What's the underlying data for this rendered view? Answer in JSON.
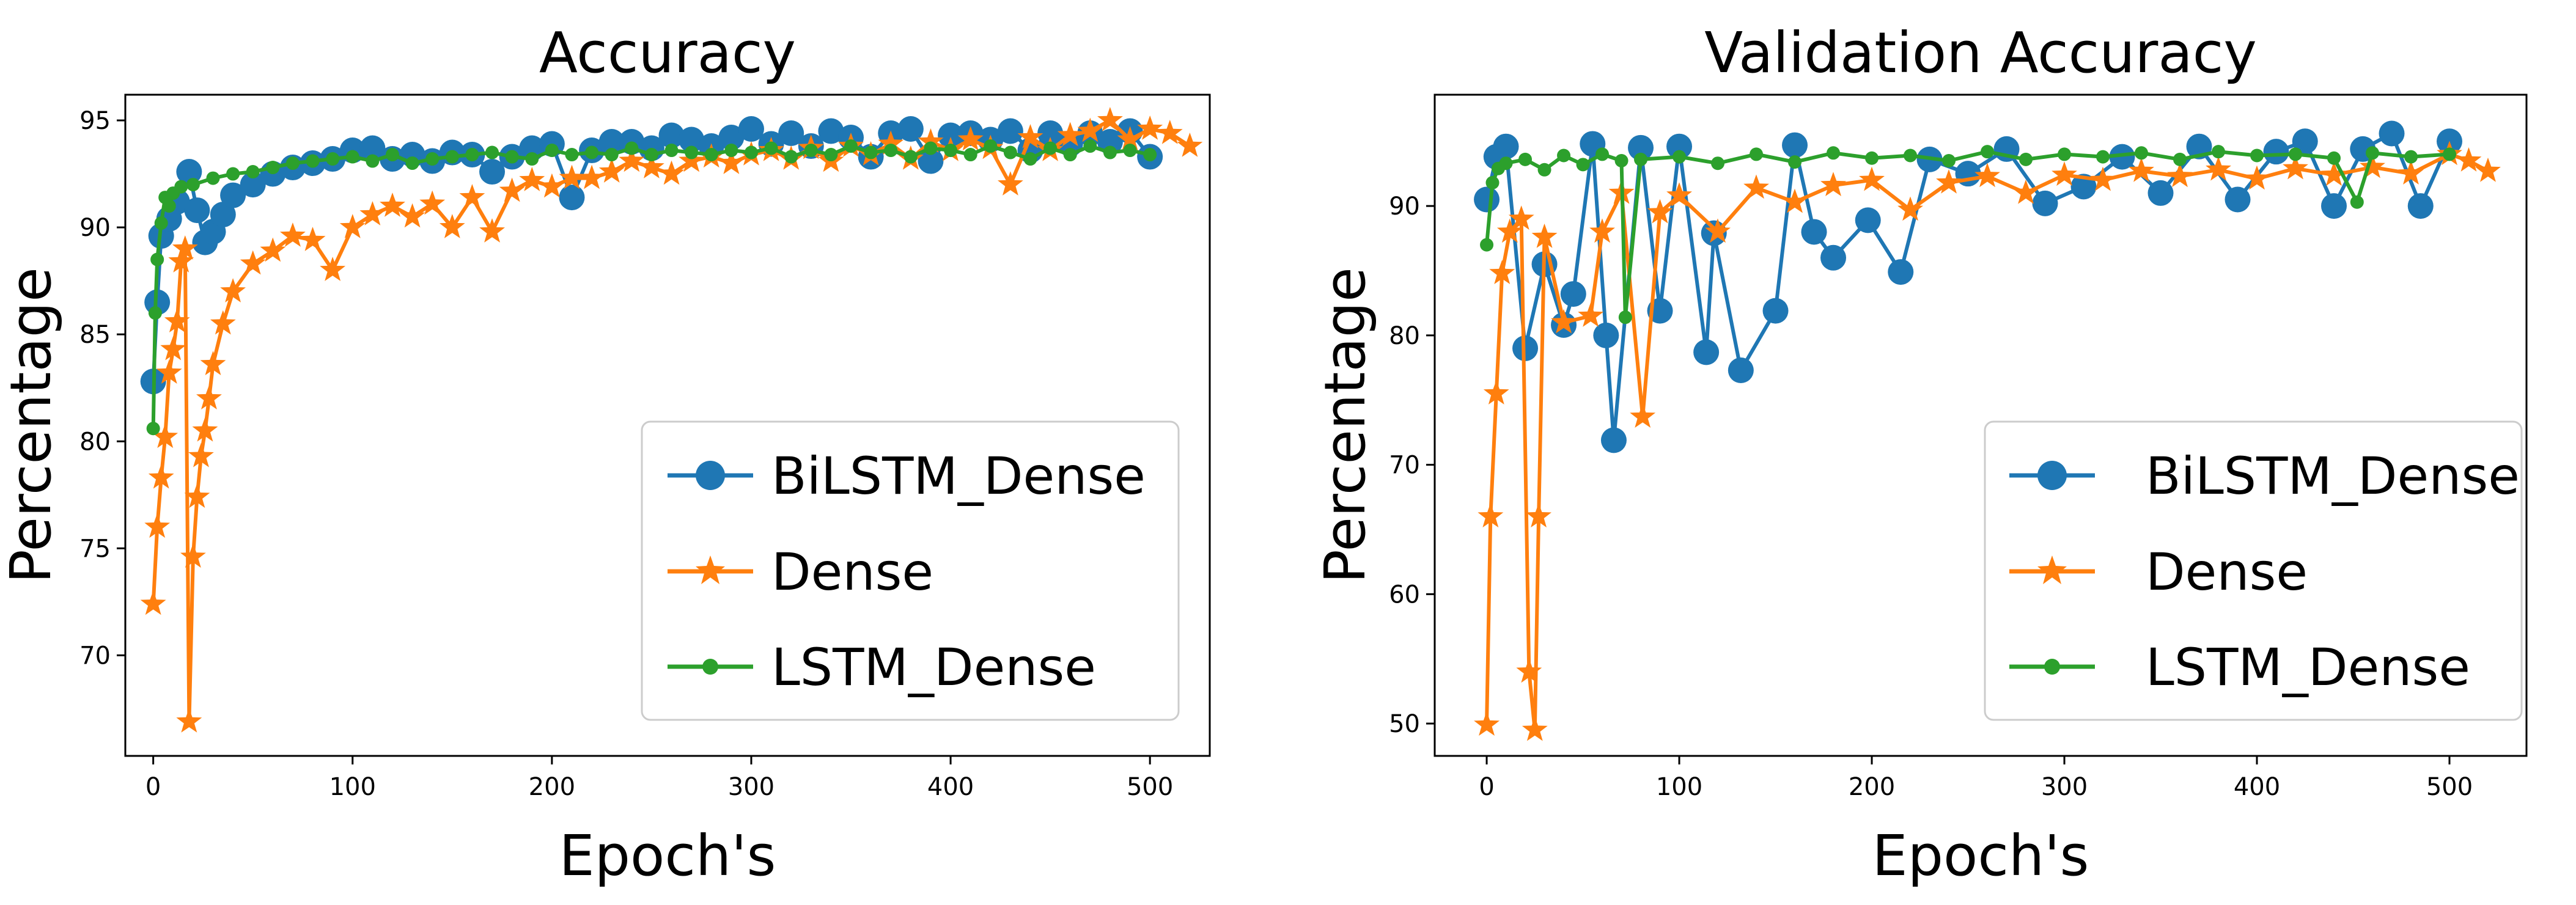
{
  "chart_data": [
    {
      "type": "line",
      "title": "Accuracy",
      "xlabel": "Epoch's",
      "ylabel": "Percentage",
      "xlim": [
        -14,
        530
      ],
      "ylim": [
        65.3,
        96.2
      ],
      "xticks": [
        0,
        100,
        200,
        300,
        400,
        500
      ],
      "yticks": [
        70,
        75,
        80,
        85,
        90,
        95
      ],
      "legend_position": "lower-right",
      "series": [
        {
          "name": "BiLSTM_Dense",
          "color": "#1f77b4",
          "marker": "circle",
          "x": [
            0,
            2,
            4,
            8,
            12,
            18,
            22,
            26,
            30,
            35,
            40,
            50,
            60,
            70,
            80,
            90,
            100,
            110,
            120,
            130,
            140,
            150,
            160,
            170,
            180,
            190,
            200,
            210,
            220,
            230,
            240,
            250,
            260,
            270,
            280,
            290,
            300,
            310,
            320,
            330,
            340,
            350,
            360,
            370,
            380,
            390,
            400,
            410,
            420,
            430,
            440,
            450,
            460,
            470,
            480,
            490,
            500
          ],
          "y": [
            82.8,
            86.5,
            89.6,
            90.4,
            91.2,
            92.6,
            90.8,
            89.3,
            89.8,
            90.6,
            91.5,
            92.0,
            92.5,
            92.8,
            93.0,
            93.2,
            93.6,
            93.7,
            93.2,
            93.4,
            93.1,
            93.5,
            93.4,
            92.6,
            93.3,
            93.7,
            93.9,
            91.4,
            93.6,
            94.0,
            94.0,
            93.7,
            94.3,
            94.1,
            93.8,
            94.2,
            94.6,
            93.9,
            94.4,
            93.8,
            94.5,
            94.2,
            93.3,
            94.4,
            94.6,
            93.1,
            94.3,
            94.4,
            94.1,
            94.5,
            93.6,
            94.4,
            93.9,
            94.4,
            94.0,
            94.5,
            93.3
          ]
        },
        {
          "name": "Dense",
          "color": "#ff7f0e",
          "marker": "star",
          "x": [
            0,
            2,
            4,
            6,
            8,
            10,
            12,
            14,
            16,
            18,
            20,
            22,
            24,
            26,
            28,
            30,
            35,
            40,
            50,
            60,
            70,
            80,
            90,
            100,
            110,
            120,
            130,
            140,
            150,
            160,
            170,
            180,
            190,
            200,
            210,
            220,
            230,
            240,
            250,
            260,
            270,
            280,
            290,
            300,
            310,
            320,
            330,
            340,
            350,
            360,
            370,
            380,
            390,
            400,
            410,
            420,
            430,
            440,
            450,
            460,
            470,
            480,
            490,
            500,
            510,
            520
          ],
          "y": [
            72.4,
            76.0,
            78.3,
            80.2,
            83.2,
            84.3,
            85.6,
            88.4,
            89.0,
            66.9,
            74.6,
            77.4,
            79.3,
            80.5,
            82.0,
            83.6,
            85.5,
            87.0,
            88.3,
            88.9,
            89.6,
            89.4,
            88.0,
            90.0,
            90.6,
            91.0,
            90.5,
            91.1,
            90.0,
            91.4,
            89.8,
            91.7,
            92.2,
            91.9,
            92.3,
            92.3,
            92.6,
            93.1,
            92.8,
            92.5,
            93.1,
            93.3,
            93.0,
            93.4,
            93.6,
            93.2,
            93.7,
            93.1,
            93.8,
            93.4,
            93.9,
            93.2,
            94.0,
            93.6,
            94.1,
            93.7,
            92.0,
            94.2,
            93.6,
            94.3,
            94.5,
            95.0,
            94.1,
            94.6,
            94.4,
            93.8
          ]
        },
        {
          "name": "LSTM_Dense",
          "color": "#2ca02c",
          "marker": "dot",
          "x": [
            0,
            1,
            2,
            4,
            6,
            8,
            10,
            14,
            20,
            30,
            40,
            50,
            60,
            70,
            80,
            90,
            100,
            110,
            120,
            130,
            140,
            150,
            160,
            170,
            180,
            190,
            200,
            210,
            220,
            230,
            240,
            250,
            260,
            270,
            280,
            290,
            300,
            310,
            320,
            330,
            340,
            350,
            360,
            370,
            380,
            390,
            400,
            410,
            420,
            430,
            440,
            450,
            460,
            470,
            480,
            490,
            500
          ],
          "y": [
            80.6,
            86.0,
            88.5,
            90.2,
            91.4,
            91.0,
            91.6,
            91.9,
            92.0,
            92.3,
            92.5,
            92.6,
            92.8,
            93.0,
            93.1,
            93.2,
            93.3,
            93.1,
            93.4,
            93.0,
            93.2,
            93.3,
            93.4,
            93.5,
            93.3,
            93.2,
            93.6,
            93.4,
            93.5,
            93.4,
            93.7,
            93.4,
            93.6,
            93.5,
            93.4,
            93.6,
            93.5,
            93.7,
            93.3,
            93.6,
            93.4,
            93.8,
            93.5,
            93.6,
            93.3,
            93.7,
            93.6,
            93.4,
            93.8,
            93.5,
            93.2,
            93.7,
            93.4,
            93.8,
            93.5,
            93.6,
            93.4
          ]
        }
      ]
    },
    {
      "type": "line",
      "title": "Validation Accuracy",
      "xlabel": "Epoch's",
      "ylabel": "Percentage",
      "xlim": [
        -27,
        540
      ],
      "ylim": [
        47.5,
        98.6
      ],
      "xticks": [
        0,
        100,
        200,
        300,
        400,
        500
      ],
      "yticks": [
        50,
        60,
        70,
        80,
        90
      ],
      "legend_position": "lower-right",
      "series": [
        {
          "name": "BiLSTM_Dense",
          "color": "#1f77b4",
          "marker": "circle",
          "x": [
            0,
            5,
            10,
            20,
            30,
            40,
            45,
            55,
            62,
            66,
            80,
            90,
            100,
            114,
            118,
            132,
            150,
            160,
            170,
            180,
            198,
            215,
            230,
            250,
            270,
            290,
            310,
            330,
            350,
            370,
            390,
            410,
            425,
            440,
            455,
            470,
            485,
            500
          ],
          "y": [
            90.5,
            93.8,
            94.6,
            79.0,
            85.5,
            80.8,
            83.2,
            94.8,
            80.0,
            71.9,
            94.5,
            81.9,
            94.6,
            78.7,
            87.9,
            77.3,
            81.9,
            94.7,
            88.0,
            86.0,
            88.9,
            84.9,
            93.6,
            92.5,
            94.4,
            90.2,
            91.5,
            93.8,
            91.0,
            94.6,
            90.5,
            94.2,
            95.0,
            90.0,
            94.4,
            95.6,
            90.0,
            95.0
          ]
        },
        {
          "name": "Dense",
          "color": "#ff7f0e",
          "marker": "star",
          "x": [
            0,
            2,
            5,
            8,
            12,
            18,
            22,
            25,
            27,
            30,
            40,
            54,
            60,
            70,
            81,
            90,
            100,
            120,
            140,
            160,
            180,
            200,
            220,
            240,
            260,
            280,
            300,
            320,
            340,
            360,
            380,
            400,
            420,
            440,
            460,
            480,
            500,
            510,
            520
          ],
          "y": [
            49.9,
            66.0,
            75.5,
            84.8,
            88.0,
            89.0,
            54.0,
            49.5,
            66.0,
            87.6,
            81.0,
            81.5,
            88.0,
            91.0,
            73.7,
            89.5,
            90.8,
            88.0,
            91.4,
            90.3,
            91.6,
            92.0,
            89.7,
            91.8,
            92.3,
            91.0,
            92.4,
            92.0,
            92.7,
            92.3,
            92.8,
            92.1,
            92.9,
            92.4,
            93.0,
            92.5,
            94.0,
            93.5,
            92.7
          ]
        },
        {
          "name": "LSTM_Dense",
          "color": "#2ca02c",
          "marker": "dot",
          "x": [
            0,
            3,
            6,
            10,
            20,
            30,
            40,
            50,
            60,
            70,
            72,
            80,
            100,
            120,
            140,
            160,
            180,
            200,
            220,
            240,
            260,
            280,
            300,
            320,
            340,
            360,
            380,
            400,
            420,
            440,
            452,
            460,
            480,
            500
          ],
          "y": [
            87.0,
            91.8,
            92.9,
            93.3,
            93.6,
            92.8,
            93.9,
            93.2,
            94.0,
            93.5,
            81.4,
            93.6,
            93.8,
            93.3,
            94.0,
            93.4,
            94.1,
            93.7,
            93.9,
            93.5,
            94.2,
            93.6,
            94.0,
            93.8,
            94.1,
            93.6,
            94.2,
            93.9,
            94.0,
            93.7,
            90.3,
            94.1,
            93.8,
            94.0
          ]
        }
      ]
    }
  ]
}
